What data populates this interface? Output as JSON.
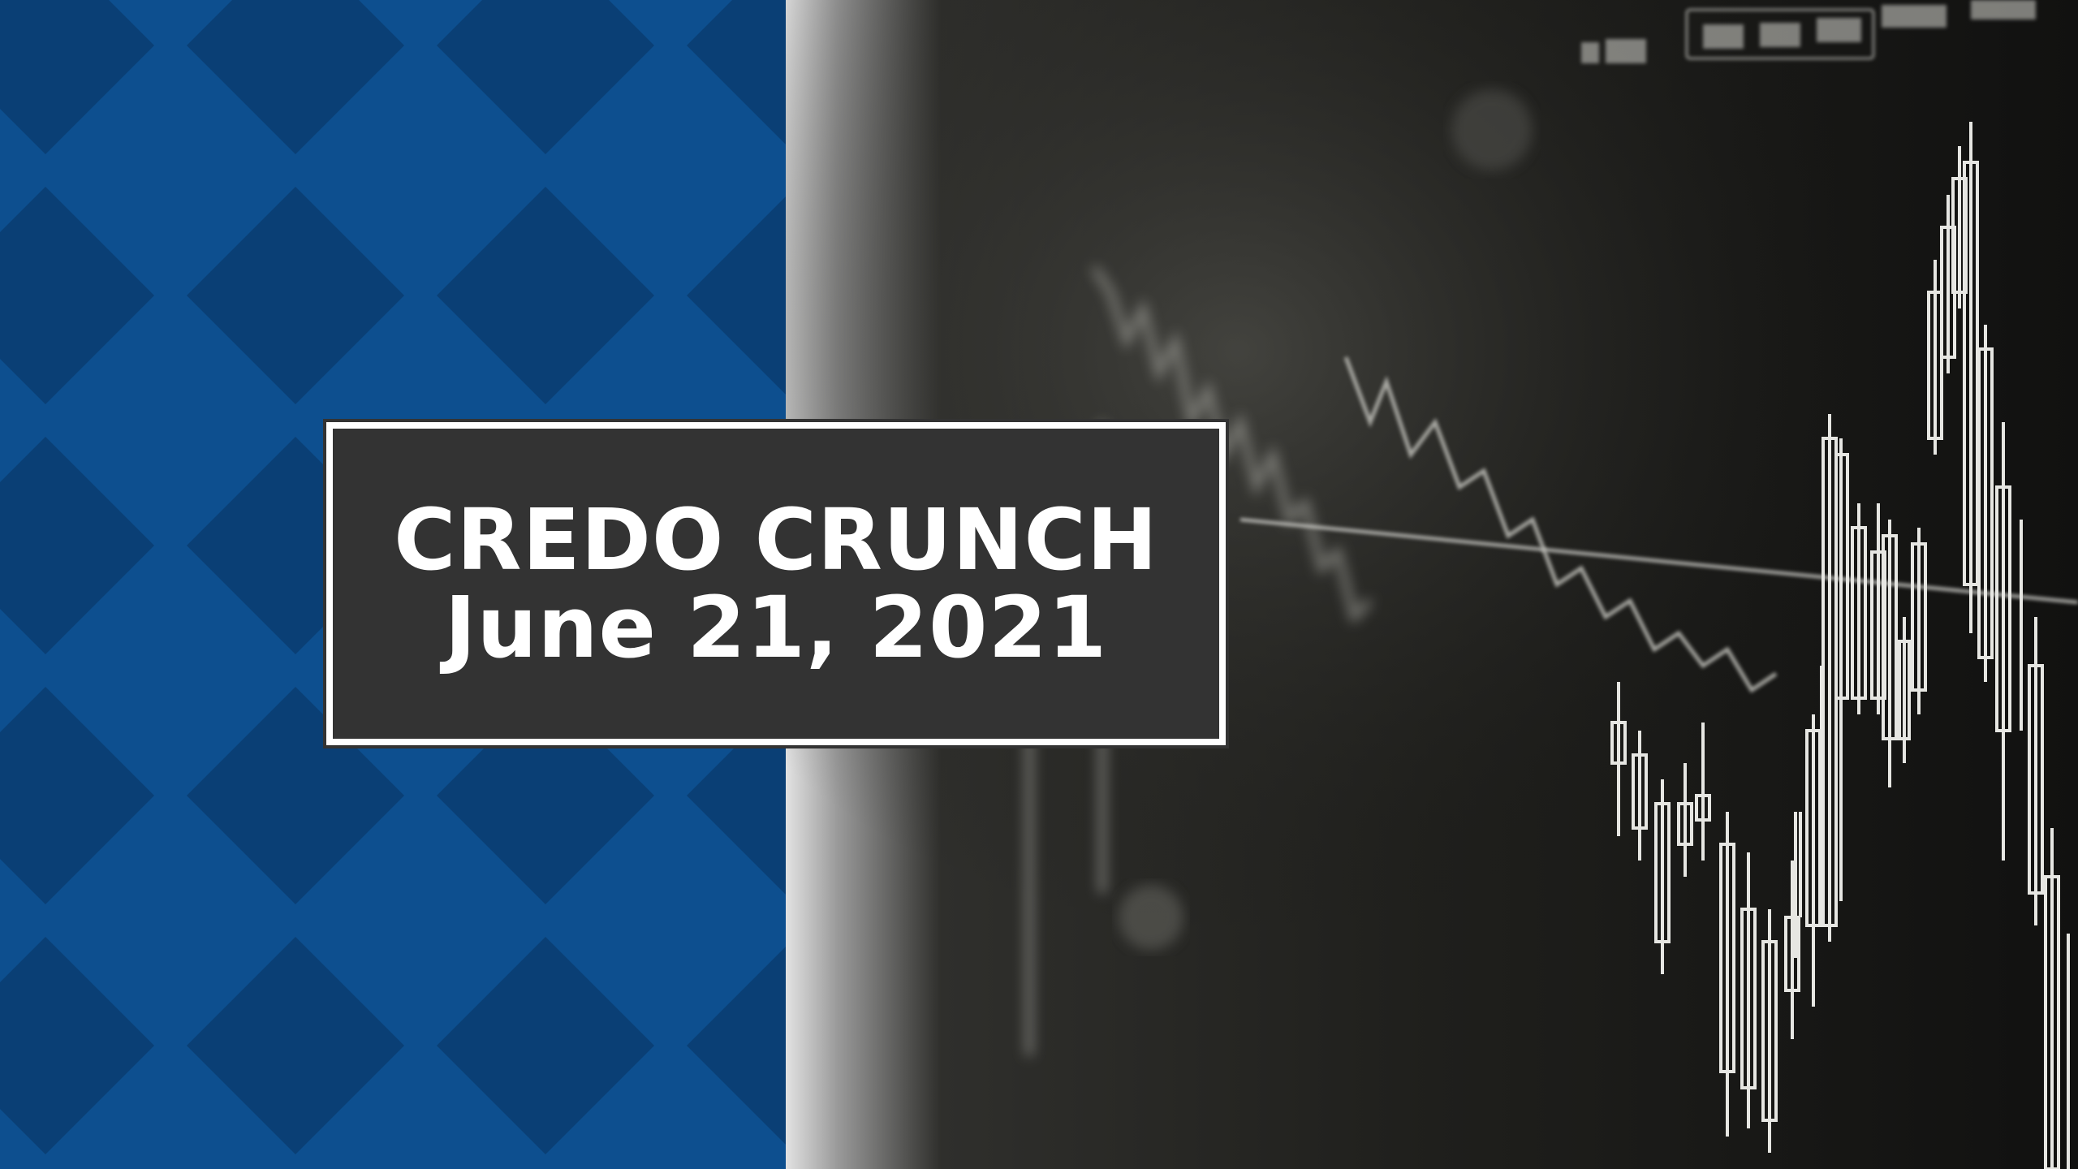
{
  "banner": {
    "title": "CREDO CRUNCH",
    "date": "June 21, 2021"
  },
  "colors": {
    "brand_blue": "#0d4f8f",
    "pattern_blue": "#0a3f75",
    "title_box_bg": "#333333",
    "title_text": "#ffffff"
  },
  "background_photo": {
    "subject": "blurred stock market candlestick chart on monitor",
    "icon": "stock-chart-icon"
  }
}
